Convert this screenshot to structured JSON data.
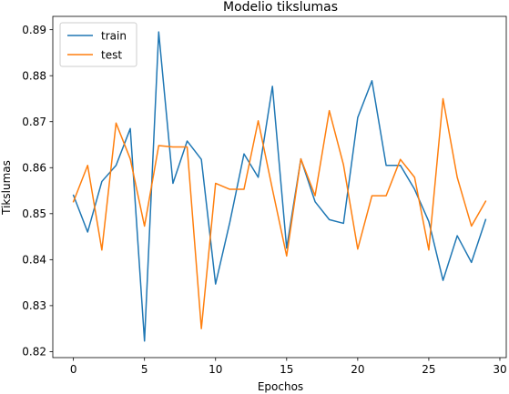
{
  "chart_data": {
    "type": "line",
    "title": "Modelio tikslumas",
    "xlabel": "Epochos",
    "ylabel": "Tikslumas",
    "xlim": [
      -1.45,
      30.45
    ],
    "ylim": [
      0.8187,
      0.8929
    ],
    "xticks": [
      0,
      5,
      10,
      15,
      20,
      25,
      30
    ],
    "yticks": [
      0.82,
      0.83,
      0.84,
      0.85,
      0.86,
      0.87,
      0.88,
      0.89
    ],
    "ytick_labels": [
      "0.82",
      "0.83",
      "0.84",
      "0.85",
      "0.86",
      "0.87",
      "0.88",
      "0.89"
    ],
    "legend_position": "upper-left",
    "grid": false,
    "series": [
      {
        "name": "train",
        "color": "#1f77b4",
        "x": [
          0,
          1,
          2,
          3,
          4,
          5,
          6,
          7,
          8,
          9,
          10,
          11,
          12,
          13,
          14,
          15,
          16,
          17,
          18,
          19,
          20,
          21,
          22,
          23,
          24,
          25,
          26,
          27,
          28,
          29
        ],
        "values": [
          0.854,
          0.846,
          0.857,
          0.8605,
          0.8685,
          0.8223,
          0.8895,
          0.8566,
          0.8658,
          0.8618,
          0.8347,
          0.8481,
          0.863,
          0.8579,
          0.8777,
          0.8425,
          0.8619,
          0.8526,
          0.8487,
          0.8479,
          0.8709,
          0.8789,
          0.8605,
          0.8605,
          0.8553,
          0.8483,
          0.8355,
          0.8452,
          0.8394,
          0.8487
        ]
      },
      {
        "name": "test",
        "color": "#ff7f0e",
        "x": [
          0,
          1,
          2,
          3,
          4,
          5,
          6,
          7,
          8,
          9,
          10,
          11,
          12,
          13,
          14,
          15,
          16,
          17,
          18,
          19,
          20,
          21,
          22,
          23,
          24,
          25,
          26,
          27,
          28,
          29
        ],
        "values": [
          0.8526,
          0.8605,
          0.8421,
          0.8697,
          0.8619,
          0.8473,
          0.8648,
          0.8645,
          0.8645,
          0.825,
          0.8566,
          0.8553,
          0.8553,
          0.8702,
          0.8553,
          0.8408,
          0.8619,
          0.8539,
          0.8724,
          0.8606,
          0.8423,
          0.8539,
          0.8539,
          0.8618,
          0.8579,
          0.8421,
          0.875,
          0.8579,
          0.8473,
          0.8527
        ]
      }
    ]
  }
}
